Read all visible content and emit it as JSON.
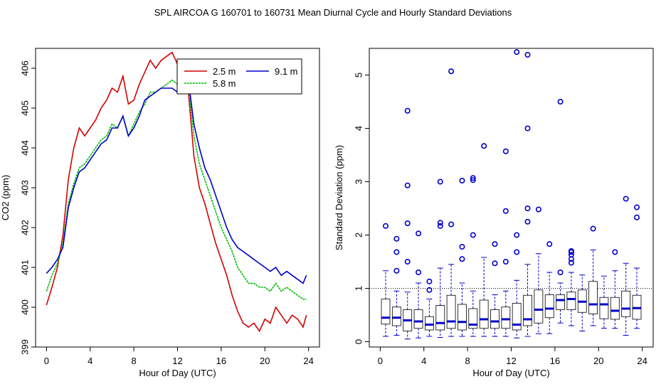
{
  "title": "SPL   AIRCOA G   160701 to 160731   Mean Diurnal Cycle and Hourly Standard Deviations",
  "chart_data": [
    {
      "type": "line",
      "xlabel": "Hour of Day (UTC)",
      "ylabel": "CO2 (ppm)",
      "xlim": [
        -1,
        25
      ],
      "ylim": [
        399,
        406.5
      ],
      "xticks": [
        "0",
        "4",
        "8",
        "12",
        "16",
        "20",
        "24"
      ],
      "yticks": [
        "399",
        "400",
        "401",
        "402",
        "403",
        "404",
        "405",
        "406"
      ],
      "legend_position": "top-right",
      "series": [
        {
          "name": "2.5 m",
          "color": "#d40000",
          "x": [
            0,
            0.5,
            1,
            1.5,
            2,
            2.5,
            3,
            3.5,
            4,
            4.5,
            5,
            5.5,
            6,
            6.5,
            7,
            7.5,
            8,
            8.5,
            9,
            9.5,
            10,
            10.5,
            11,
            11.5,
            12,
            12.5,
            13,
            13.5,
            14,
            14.5,
            15,
            15.5,
            16,
            16.5,
            17,
            17.5,
            18,
            18.5,
            19,
            19.5,
            20,
            20.5,
            21,
            21.5,
            22,
            22.5,
            23,
            23.5,
            23.8
          ],
          "y": [
            400.05,
            400.5,
            401.0,
            401.8,
            403.2,
            404.0,
            404.5,
            404.3,
            404.5,
            404.7,
            405.0,
            405.2,
            405.5,
            405.4,
            405.8,
            405.1,
            405.2,
            405.6,
            405.9,
            406.2,
            406.0,
            406.2,
            406.3,
            406.4,
            406.1,
            405.7,
            405.4,
            403.8,
            403.0,
            402.6,
            402.1,
            401.6,
            401.2,
            400.8,
            400.3,
            399.9,
            399.6,
            399.5,
            399.6,
            399.4,
            399.7,
            399.6,
            400.0,
            399.8,
            399.6,
            399.8,
            399.7,
            399.5,
            399.8
          ]
        },
        {
          "name": "5.8 m",
          "color": "#00c000",
          "x": [
            0,
            0.5,
            1,
            1.5,
            2,
            2.5,
            3,
            3.5,
            4,
            4.5,
            5,
            5.5,
            6,
            6.5,
            7,
            7.5,
            8,
            8.5,
            9,
            9.5,
            10,
            10.5,
            11,
            11.5,
            12,
            12.5,
            13,
            13.5,
            14,
            14.5,
            15,
            15.5,
            16,
            16.5,
            17,
            17.5,
            18,
            18.5,
            19,
            19.5,
            20,
            20.5,
            21,
            21.5,
            22,
            22.5,
            23,
            23.5,
            23.8
          ],
          "y": [
            400.4,
            400.8,
            401.1,
            401.6,
            402.6,
            403.1,
            403.5,
            403.6,
            403.8,
            404.0,
            404.2,
            404.3,
            404.6,
            404.5,
            404.8,
            404.3,
            404.6,
            404.9,
            405.1,
            405.4,
            405.4,
            405.5,
            405.6,
            405.7,
            405.6,
            405.5,
            405.6,
            404.3,
            403.6,
            403.2,
            402.8,
            402.4,
            402.0,
            401.7,
            401.4,
            401.0,
            400.8,
            400.6,
            400.6,
            400.5,
            400.5,
            400.4,
            400.6,
            400.4,
            400.5,
            400.4,
            400.3,
            400.2,
            400.2
          ]
        },
        {
          "name": "9.1 m",
          "color": "#0000cc",
          "x": [
            0,
            0.5,
            1,
            1.5,
            2,
            2.5,
            3,
            3.5,
            4,
            4.5,
            5,
            5.5,
            6,
            6.5,
            7,
            7.5,
            8,
            8.5,
            9,
            9.5,
            10,
            10.5,
            11,
            11.5,
            12,
            12.5,
            13,
            13.5,
            14,
            14.5,
            15,
            15.5,
            16,
            16.5,
            17,
            17.5,
            18,
            18.5,
            19,
            19.5,
            20,
            20.5,
            21,
            21.5,
            22,
            22.5,
            23,
            23.5,
            23.8
          ],
          "y": [
            400.85,
            401.0,
            401.2,
            401.5,
            402.5,
            403.0,
            403.4,
            403.5,
            403.7,
            403.9,
            404.1,
            404.2,
            404.5,
            404.5,
            404.8,
            404.3,
            404.5,
            404.8,
            405.2,
            405.3,
            405.4,
            405.5,
            405.5,
            405.5,
            405.4,
            405.5,
            405.7,
            404.6,
            404.0,
            403.5,
            403.2,
            402.8,
            402.4,
            402.0,
            401.7,
            401.5,
            401.4,
            401.3,
            401.2,
            401.1,
            401.0,
            400.9,
            401.0,
            400.8,
            400.9,
            400.8,
            400.7,
            400.6,
            400.8
          ]
        }
      ]
    },
    {
      "type": "box",
      "xlabel": "Hour of Day (UTC)",
      "ylabel": "Standard Deviation (ppm)",
      "xlim": [
        -1,
        25
      ],
      "ylim": [
        -0.1,
        5.5
      ],
      "xticks": [
        "0",
        "4",
        "8",
        "12",
        "16",
        "20",
        "24"
      ],
      "yticks": [
        "0",
        "1",
        "2",
        "3",
        "4",
        "5"
      ],
      "reference_line": 1,
      "boxes": [
        {
          "x": 0.5,
          "min": 0.1,
          "q1": 0.33,
          "median": 0.45,
          "q3": 0.8,
          "max": 1.33,
          "outliers": [
            2.17
          ]
        },
        {
          "x": 1.5,
          "min": 0.12,
          "q1": 0.3,
          "median": 0.45,
          "q3": 0.65,
          "max": 0.95,
          "outliers": [
            1.33,
            1.68,
            1.93
          ]
        },
        {
          "x": 2.5,
          "min": 0.05,
          "q1": 0.2,
          "median": 0.4,
          "q3": 0.6,
          "max": 0.93,
          "outliers": [
            1.5,
            2.22,
            2.93,
            4.33
          ]
        },
        {
          "x": 3.5,
          "min": 0.07,
          "q1": 0.25,
          "median": 0.38,
          "q3": 0.6,
          "max": 1.1,
          "outliers": [
            1.3,
            2.03
          ]
        },
        {
          "x": 4.5,
          "min": 0.1,
          "q1": 0.22,
          "median": 0.32,
          "q3": 0.47,
          "max": 0.8,
          "outliers": [
            0.97,
            1.13
          ]
        },
        {
          "x": 5.5,
          "min": 0.08,
          "q1": 0.22,
          "median": 0.35,
          "q3": 0.68,
          "max": 1.38,
          "outliers": [
            2.17,
            2.23,
            3.0
          ]
        },
        {
          "x": 6.5,
          "min": 0.1,
          "q1": 0.25,
          "median": 0.38,
          "q3": 0.87,
          "max": 1.45,
          "outliers": [
            2.2,
            5.07
          ]
        },
        {
          "x": 7.5,
          "min": 0.1,
          "q1": 0.22,
          "median": 0.37,
          "q3": 0.7,
          "max": 1.1,
          "outliers": [
            1.55,
            1.78,
            3.02
          ]
        },
        {
          "x": 8.5,
          "min": 0.1,
          "q1": 0.25,
          "median": 0.32,
          "q3": 0.62,
          "max": 0.95,
          "outliers": [
            2.0,
            3.03,
            3.07
          ]
        },
        {
          "x": 9.5,
          "min": 0.1,
          "q1": 0.25,
          "median": 0.42,
          "q3": 0.78,
          "max": 1.58,
          "outliers": [
            3.67
          ]
        },
        {
          "x": 10.5,
          "min": 0.1,
          "q1": 0.25,
          "median": 0.38,
          "q3": 0.6,
          "max": 0.88,
          "outliers": [
            1.47,
            1.83
          ]
        },
        {
          "x": 11.5,
          "min": 0.1,
          "q1": 0.25,
          "median": 0.42,
          "q3": 0.65,
          "max": 0.95,
          "outliers": [
            1.5,
            2.45,
            3.57
          ]
        },
        {
          "x": 12.5,
          "min": 0.07,
          "q1": 0.22,
          "median": 0.32,
          "q3": 0.72,
          "max": 1.15,
          "outliers": [
            1.68,
            2.0,
            5.43
          ]
        },
        {
          "x": 13.5,
          "min": 0.1,
          "q1": 0.3,
          "median": 0.42,
          "q3": 0.87,
          "max": 1.45,
          "outliers": [
            2.25,
            2.5,
            4.0,
            5.38
          ]
        },
        {
          "x": 14.5,
          "min": 0.15,
          "q1": 0.35,
          "median": 0.6,
          "q3": 0.97,
          "max": 1.65,
          "outliers": [
            2.48
          ]
        },
        {
          "x": 15.5,
          "min": 0.15,
          "q1": 0.45,
          "median": 0.62,
          "q3": 0.88,
          "max": 1.3,
          "outliers": [
            1.83
          ]
        },
        {
          "x": 16.5,
          "min": 0.35,
          "q1": 0.6,
          "median": 0.78,
          "q3": 0.88,
          "max": 1.1,
          "outliers": [
            1.3,
            4.5
          ]
        },
        {
          "x": 17.5,
          "min": 0.3,
          "q1": 0.6,
          "median": 0.8,
          "q3": 0.93,
          "max": 1.3,
          "outliers": [
            1.48,
            1.55,
            1.63,
            1.68,
            1.7
          ]
        },
        {
          "x": 18.5,
          "min": 0.2,
          "q1": 0.55,
          "median": 0.75,
          "q3": 0.97,
          "max": 1.25,
          "outliers": []
        },
        {
          "x": 19.5,
          "min": 0.3,
          "q1": 0.52,
          "median": 0.7,
          "q3": 1.13,
          "max": 1.72,
          "outliers": [
            2.12
          ]
        },
        {
          "x": 20.5,
          "min": 0.25,
          "q1": 0.43,
          "median": 0.7,
          "q3": 0.83,
          "max": 1.23,
          "outliers": []
        },
        {
          "x": 21.5,
          "min": 0.25,
          "q1": 0.42,
          "median": 0.58,
          "q3": 0.83,
          "max": 1.33,
          "outliers": [
            1.68
          ]
        },
        {
          "x": 22.5,
          "min": 0.12,
          "q1": 0.47,
          "median": 0.62,
          "q3": 0.95,
          "max": 1.47,
          "outliers": [
            2.68
          ]
        },
        {
          "x": 23.5,
          "min": 0.25,
          "q1": 0.42,
          "median": 0.63,
          "q3": 0.87,
          "max": 1.38,
          "outliers": [
            2.33,
            2.52
          ]
        }
      ]
    }
  ]
}
